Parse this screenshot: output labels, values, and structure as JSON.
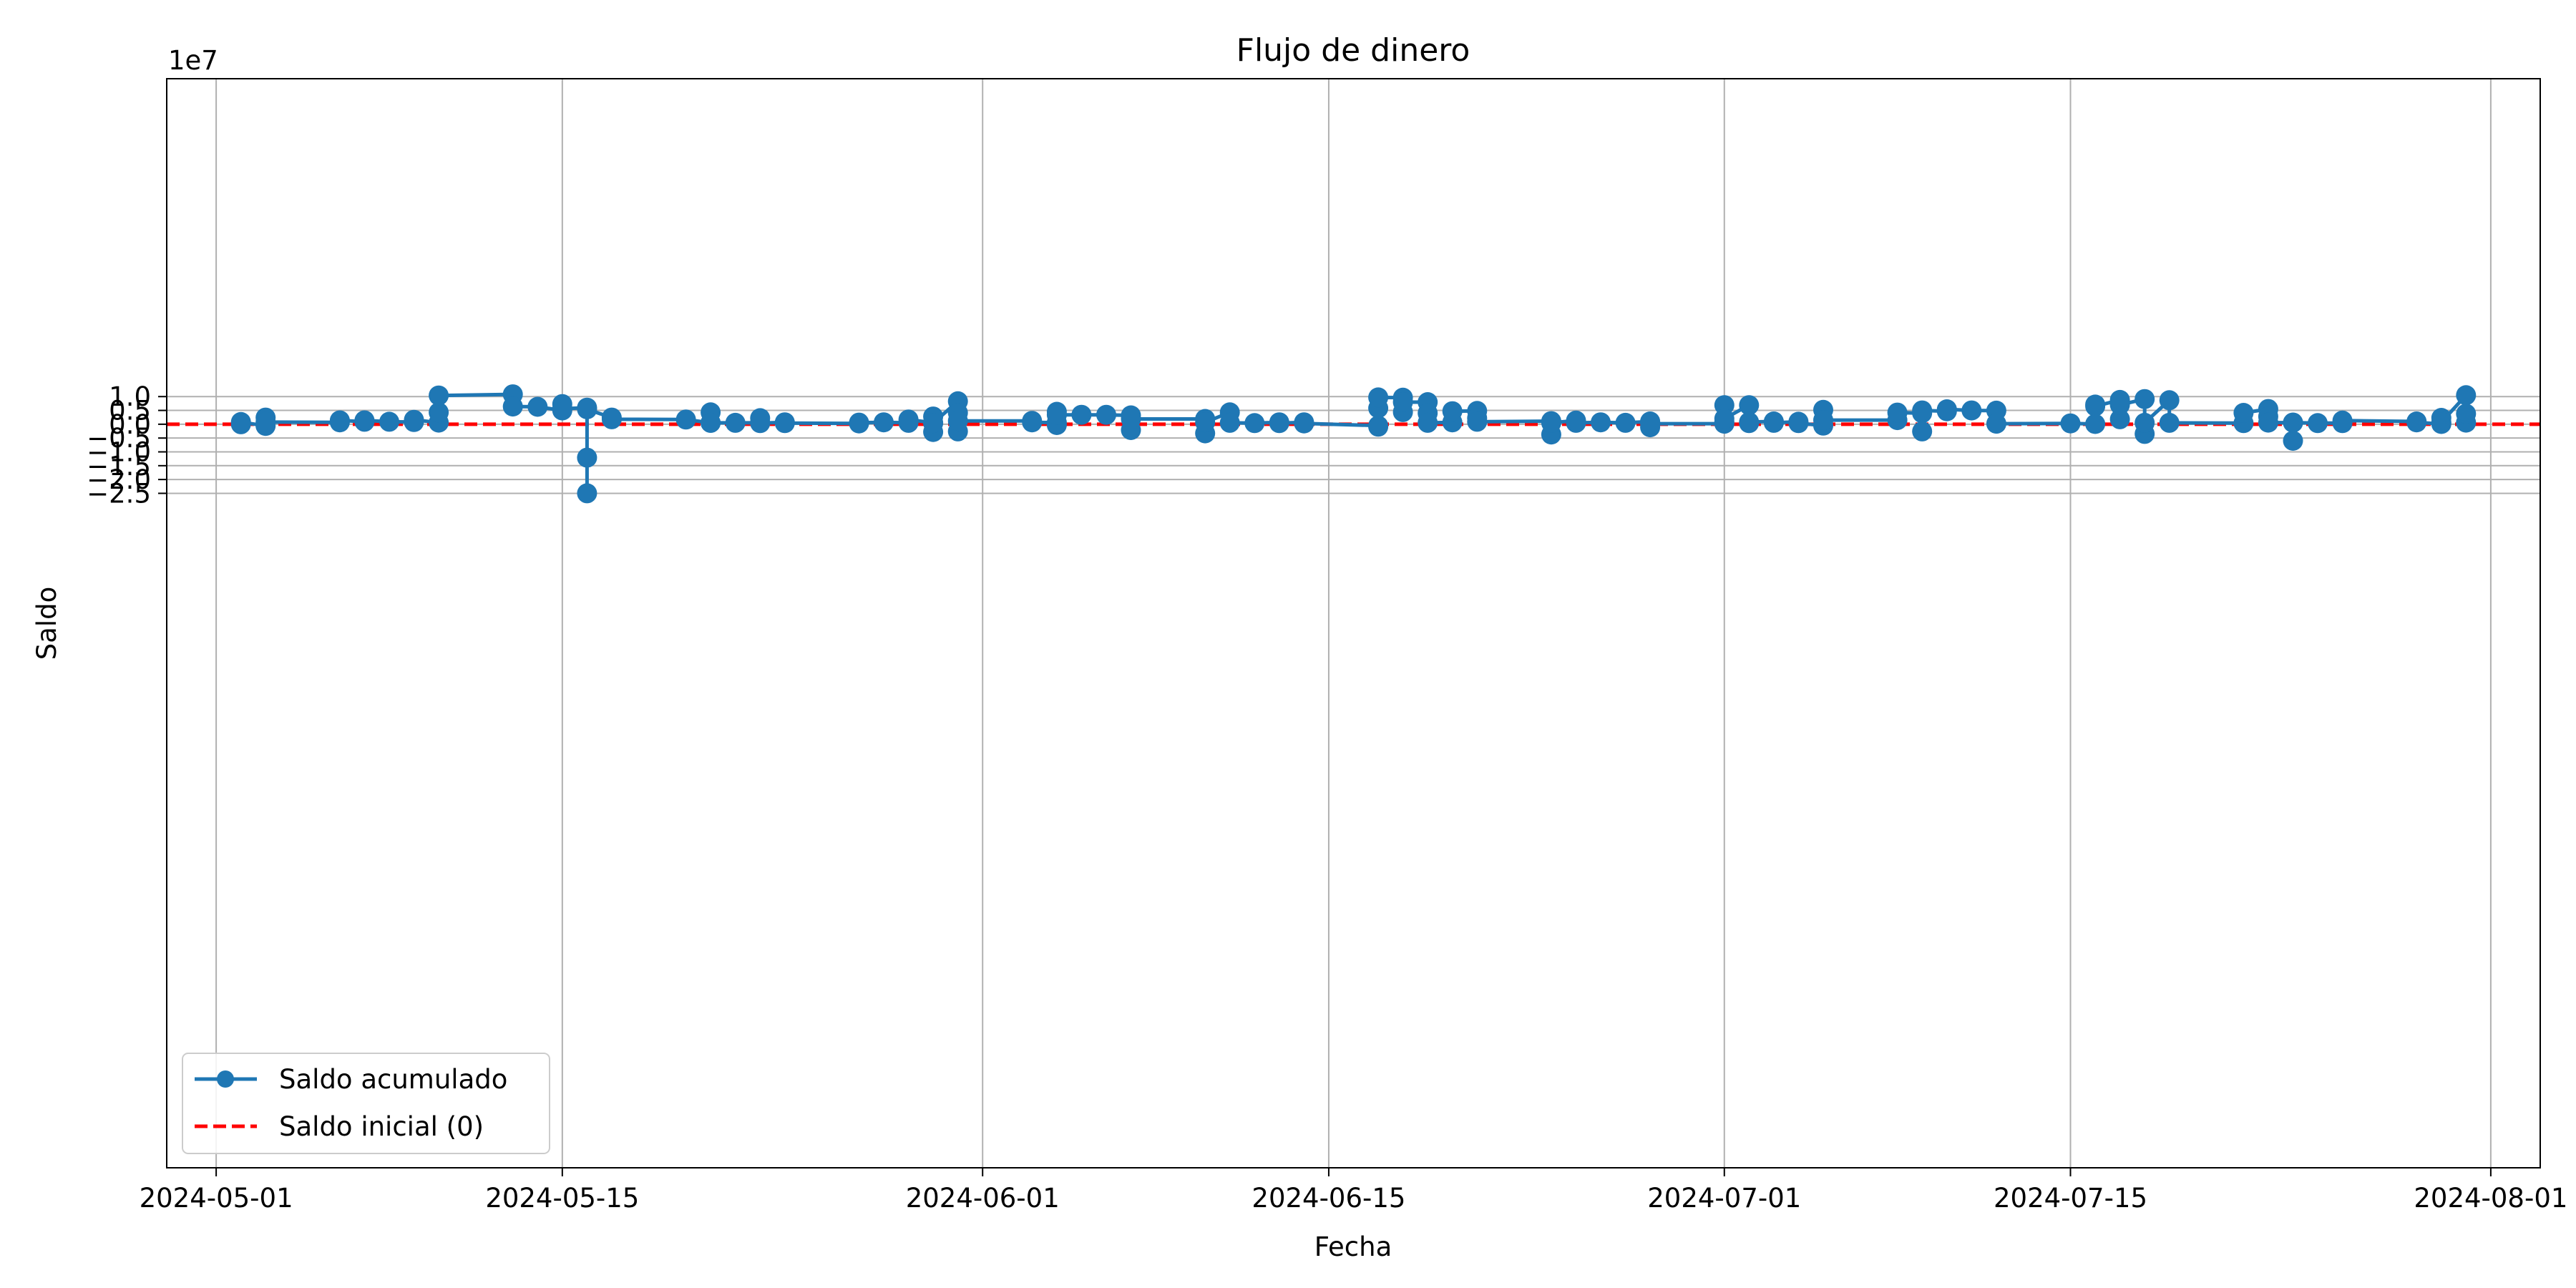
{
  "chart_data": {
    "type": "line",
    "title": "Flujo de dinero",
    "xlabel": "Fecha",
    "ylabel": "Saldo",
    "y_multiplier_label": "1e7",
    "y_scale": 10000000,
    "xlim": [
      "2024-04-29",
      "2024-08-03"
    ],
    "ylim": [
      -26.9,
      12.5
    ],
    "x_ticks": [
      {
        "date": "2024-05-01",
        "label": "2024-05-01"
      },
      {
        "date": "2024-05-15",
        "label": "2024-05-15"
      },
      {
        "date": "2024-06-01",
        "label": "2024-06-01"
      },
      {
        "date": "2024-06-15",
        "label": "2024-06-15"
      },
      {
        "date": "2024-07-01",
        "label": "2024-07-01"
      },
      {
        "date": "2024-07-15",
        "label": "2024-07-15"
      },
      {
        "date": "2024-08-01",
        "label": "2024-08-01"
      }
    ],
    "y_ticks": [
      {
        "value": 10000000,
        "label": "1.0"
      },
      {
        "value": 5000000,
        "label": "0.5"
      },
      {
        "value": 0,
        "label": "0.0"
      },
      {
        "value": -5000000,
        "label": "−0.5"
      },
      {
        "value": -10000000,
        "label": "−1.0"
      },
      {
        "value": -15000000,
        "label": "−1.5"
      },
      {
        "value": -20000000,
        "label": "−2.0"
      },
      {
        "value": -25000000,
        "label": "−2.5"
      }
    ],
    "grid": true,
    "legend_position": "lower-left",
    "colors": {
      "series": "#1f77b4",
      "baseline": "#ff0000"
    },
    "series": [
      {
        "name": "Saldo acumulado",
        "style": "line-with-markers",
        "points": [
          {
            "x": "2024-05-02",
            "y": 0
          },
          {
            "x": "2024-05-02",
            "y": 800000
          },
          {
            "x": "2024-05-03",
            "y": -600000
          },
          {
            "x": "2024-05-03",
            "y": 2400000
          },
          {
            "x": "2024-05-03",
            "y": 800000
          },
          {
            "x": "2024-05-06",
            "y": 700000
          },
          {
            "x": "2024-05-06",
            "y": 1400000
          },
          {
            "x": "2024-05-07",
            "y": 900000
          },
          {
            "x": "2024-05-07",
            "y": 1400000
          },
          {
            "x": "2024-05-08",
            "y": 900000
          },
          {
            "x": "2024-05-09",
            "y": 800000
          },
          {
            "x": "2024-05-09",
            "y": 1600000
          },
          {
            "x": "2024-05-10",
            "y": 600000
          },
          {
            "x": "2024-05-10",
            "y": 4300000
          },
          {
            "x": "2024-05-10",
            "y": 10400000
          },
          {
            "x": "2024-05-13",
            "y": 10800000
          },
          {
            "x": "2024-05-13",
            "y": 6400000
          },
          {
            "x": "2024-05-14",
            "y": 6300000
          },
          {
            "x": "2024-05-15",
            "y": 5000000
          },
          {
            "x": "2024-05-15",
            "y": 7300000
          },
          {
            "x": "2024-05-15",
            "y": 5600000
          },
          {
            "x": "2024-05-16",
            "y": 6000000
          },
          {
            "x": "2024-05-16",
            "y": -12100000
          },
          {
            "x": "2024-05-16",
            "y": -25000000
          },
          {
            "x": "2024-05-16",
            "y": 5400000
          },
          {
            "x": "2024-05-17",
            "y": 2400000
          },
          {
            "x": "2024-05-17",
            "y": 1800000
          },
          {
            "x": "2024-05-20",
            "y": 1700000
          },
          {
            "x": "2024-05-21",
            "y": 500000
          },
          {
            "x": "2024-05-21",
            "y": 4300000
          },
          {
            "x": "2024-05-21",
            "y": 500000
          },
          {
            "x": "2024-05-22",
            "y": 500000
          },
          {
            "x": "2024-05-23",
            "y": 500000
          },
          {
            "x": "2024-05-23",
            "y": 2200000
          },
          {
            "x": "2024-05-23",
            "y": 400000
          },
          {
            "x": "2024-05-24",
            "y": 700000
          },
          {
            "x": "2024-05-24",
            "y": 400000
          },
          {
            "x": "2024-05-27",
            "y": 300000
          },
          {
            "x": "2024-05-27",
            "y": 600000
          },
          {
            "x": "2024-05-28",
            "y": 700000
          },
          {
            "x": "2024-05-29",
            "y": 500000
          },
          {
            "x": "2024-05-29",
            "y": 1700000
          },
          {
            "x": "2024-05-30",
            "y": 500000
          },
          {
            "x": "2024-05-30",
            "y": -2800000
          },
          {
            "x": "2024-05-30",
            "y": 2800000
          },
          {
            "x": "2024-05-30",
            "y": 400000
          },
          {
            "x": "2024-05-31",
            "y": 8300000
          },
          {
            "x": "2024-05-31",
            "y": -2600000
          },
          {
            "x": "2024-05-31",
            "y": 4100000
          },
          {
            "x": "2024-05-31",
            "y": 1200000
          },
          {
            "x": "2024-06-03",
            "y": 1200000
          },
          {
            "x": "2024-06-03",
            "y": 700000
          },
          {
            "x": "2024-06-04",
            "y": 600000
          },
          {
            "x": "2024-06-04",
            "y": -300000
          },
          {
            "x": "2024-06-04",
            "y": 4500000
          },
          {
            "x": "2024-06-04",
            "y": 3400000
          },
          {
            "x": "2024-06-05",
            "y": 3400000
          },
          {
            "x": "2024-06-06",
            "y": 3400000
          },
          {
            "x": "2024-06-07",
            "y": 3200000
          },
          {
            "x": "2024-06-07",
            "y": -2100000
          },
          {
            "x": "2024-06-07",
            "y": 1900000
          },
          {
            "x": "2024-06-10",
            "y": 1900000
          },
          {
            "x": "2024-06-10",
            "y": -3300000
          },
          {
            "x": "2024-06-10",
            "y": 700000
          },
          {
            "x": "2024-06-11",
            "y": 4300000
          },
          {
            "x": "2024-06-11",
            "y": 500000
          },
          {
            "x": "2024-06-12",
            "y": 400000
          },
          {
            "x": "2024-06-13",
            "y": 700000
          },
          {
            "x": "2024-06-13",
            "y": 400000
          },
          {
            "x": "2024-06-14",
            "y": 700000
          },
          {
            "x": "2024-06-14",
            "y": 300000
          },
          {
            "x": "2024-06-17",
            "y": -500000
          },
          {
            "x": "2024-06-17",
            "y": -900000
          },
          {
            "x": "2024-06-17",
            "y": 5800000
          },
          {
            "x": "2024-06-17",
            "y": 9700000
          },
          {
            "x": "2024-06-18",
            "y": 9600000
          },
          {
            "x": "2024-06-18",
            "y": 4400000
          },
          {
            "x": "2024-06-18",
            "y": 8000000
          },
          {
            "x": "2024-06-19",
            "y": 8000000
          },
          {
            "x": "2024-06-19",
            "y": 4000000
          },
          {
            "x": "2024-06-19",
            "y": 500000
          },
          {
            "x": "2024-06-20",
            "y": 700000
          },
          {
            "x": "2024-06-20",
            "y": 4700000
          },
          {
            "x": "2024-06-21",
            "y": 4800000
          },
          {
            "x": "2024-06-21",
            "y": 2200000
          },
          {
            "x": "2024-06-21",
            "y": 900000
          },
          {
            "x": "2024-06-24",
            "y": 1100000
          },
          {
            "x": "2024-06-24",
            "y": -3700000
          },
          {
            "x": "2024-06-24",
            "y": 500000
          },
          {
            "x": "2024-06-25",
            "y": 1300000
          },
          {
            "x": "2024-06-25",
            "y": 500000
          },
          {
            "x": "2024-06-26",
            "y": 700000
          },
          {
            "x": "2024-06-27",
            "y": 500000
          },
          {
            "x": "2024-06-28",
            "y": 1000000
          },
          {
            "x": "2024-06-28",
            "y": -1100000
          },
          {
            "x": "2024-06-28",
            "y": 200000
          },
          {
            "x": "2024-07-01",
            "y": 200000
          },
          {
            "x": "2024-07-01",
            "y": 900000
          },
          {
            "x": "2024-07-01",
            "y": 6900000
          },
          {
            "x": "2024-07-01",
            "y": 2000000
          },
          {
            "x": "2024-07-02",
            "y": 6900000
          },
          {
            "x": "2024-07-02",
            "y": 400000
          },
          {
            "x": "2024-07-02",
            "y": 800000
          },
          {
            "x": "2024-07-03",
            "y": 1000000
          },
          {
            "x": "2024-07-03",
            "y": 500000
          },
          {
            "x": "2024-07-04",
            "y": 900000
          },
          {
            "x": "2024-07-04",
            "y": 400000
          },
          {
            "x": "2024-07-05",
            "y": -500000
          },
          {
            "x": "2024-07-05",
            "y": 5200000
          },
          {
            "x": "2024-07-05",
            "y": 1500000
          },
          {
            "x": "2024-07-08",
            "y": 1500000
          },
          {
            "x": "2024-07-08",
            "y": 4200000
          },
          {
            "x": "2024-07-09",
            "y": 4000000
          },
          {
            "x": "2024-07-09",
            "y": -2600000
          },
          {
            "x": "2024-07-09",
            "y": 5000000
          },
          {
            "x": "2024-07-10",
            "y": 4700000
          },
          {
            "x": "2024-07-10",
            "y": 5400000
          },
          {
            "x": "2024-07-11",
            "y": 5000000
          },
          {
            "x": "2024-07-12",
            "y": 4900000
          },
          {
            "x": "2024-07-12",
            "y": 200000
          },
          {
            "x": "2024-07-15",
            "y": 300000
          },
          {
            "x": "2024-07-16",
            "y": 100000
          },
          {
            "x": "2024-07-16",
            "y": 7100000
          },
          {
            "x": "2024-07-16",
            "y": 6500000
          },
          {
            "x": "2024-07-17",
            "y": 8800000
          },
          {
            "x": "2024-07-17",
            "y": 1800000
          },
          {
            "x": "2024-07-17",
            "y": 7000000
          },
          {
            "x": "2024-07-18",
            "y": 9100000
          },
          {
            "x": "2024-07-18",
            "y": -3500000
          },
          {
            "x": "2024-07-18",
            "y": 500000
          },
          {
            "x": "2024-07-19",
            "y": 8700000
          },
          {
            "x": "2024-07-19",
            "y": 500000
          },
          {
            "x": "2024-07-22",
            "y": 400000
          },
          {
            "x": "2024-07-22",
            "y": 4100000
          },
          {
            "x": "2024-07-23",
            "y": 5500000
          },
          {
            "x": "2024-07-23",
            "y": 2800000
          },
          {
            "x": "2024-07-23",
            "y": 600000
          },
          {
            "x": "2024-07-24",
            "y": 600000
          },
          {
            "x": "2024-07-24",
            "y": -6000000
          },
          {
            "x": "2024-07-24",
            "y": 600000
          },
          {
            "x": "2024-07-25",
            "y": 400000
          },
          {
            "x": "2024-07-26",
            "y": 400000
          },
          {
            "x": "2024-07-26",
            "y": 1300000
          },
          {
            "x": "2024-07-29",
            "y": 1000000
          },
          {
            "x": "2024-07-29",
            "y": 700000
          },
          {
            "x": "2024-07-30",
            "y": 100000
          },
          {
            "x": "2024-07-30",
            "y": 2300000
          },
          {
            "x": "2024-07-30",
            "y": 700000
          },
          {
            "x": "2024-07-31",
            "y": 10500000
          },
          {
            "x": "2024-07-31",
            "y": 600000
          },
          {
            "x": "2024-07-31",
            "y": 3800000
          }
        ]
      },
      {
        "name": "Saldo inicial (0)",
        "style": "dashed-horizontal-line",
        "y": 0
      }
    ]
  }
}
